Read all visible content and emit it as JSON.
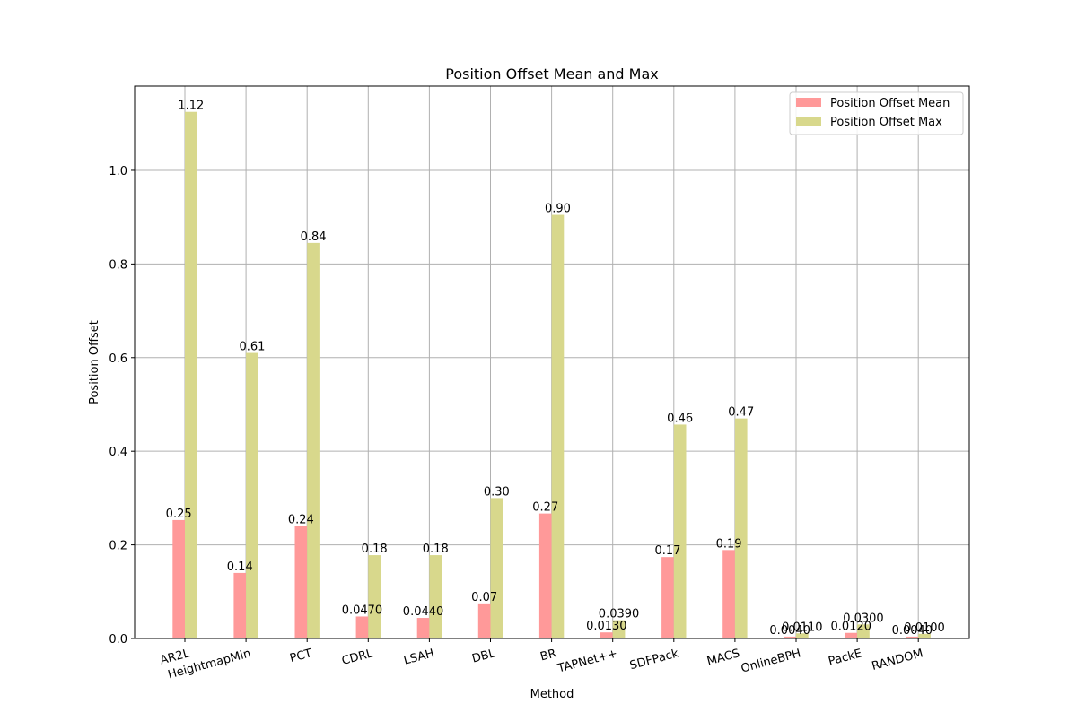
{
  "chart_data": {
    "type": "bar",
    "title": "Position Offset Mean and Max",
    "xlabel": "Method",
    "ylabel": "Position Offset",
    "ylim": [
      0,
      1.18
    ],
    "yticks": [
      0.0,
      0.2,
      0.4,
      0.6,
      0.8,
      1.0
    ],
    "ytick_labels": [
      "0.0",
      "0.2",
      "0.4",
      "0.6",
      "0.8",
      "1.0"
    ],
    "grid": true,
    "legend_position": "top-right",
    "categories": [
      "AR2L",
      "HeightmapMin",
      "PCT",
      "CDRL",
      "LSAH",
      "DBL",
      "BR",
      "TAPNet++",
      "SDFPack",
      "MACS",
      "OnlineBPH",
      "PackE",
      "RANDOM"
    ],
    "series": [
      {
        "name": "Position Offset Mean",
        "color": "#ff9999",
        "values": [
          0.253,
          0.14,
          0.24,
          0.047,
          0.044,
          0.075,
          0.267,
          0.013,
          0.174,
          0.189,
          0.004,
          0.012,
          0.004
        ],
        "labels": [
          "0.25",
          "0.14",
          "0.24",
          "0.0470",
          "0.0440",
          "0.07",
          "0.27",
          "0.0130",
          "0.17",
          "0.19",
          "0.0040",
          "0.0120",
          "0.0040"
        ]
      },
      {
        "name": "Position Offset Max",
        "color": "#d8d88c",
        "values": [
          1.125,
          0.61,
          0.845,
          0.178,
          0.178,
          0.3,
          0.905,
          0.039,
          0.457,
          0.47,
          0.011,
          0.03,
          0.01
        ],
        "labels": [
          "1.12",
          "0.61",
          "0.84",
          "0.18",
          "0.18",
          "0.30",
          "0.90",
          "0.0390",
          "0.46",
          "0.47",
          "0.0110",
          "0.0300",
          "0.0100"
        ]
      }
    ]
  }
}
